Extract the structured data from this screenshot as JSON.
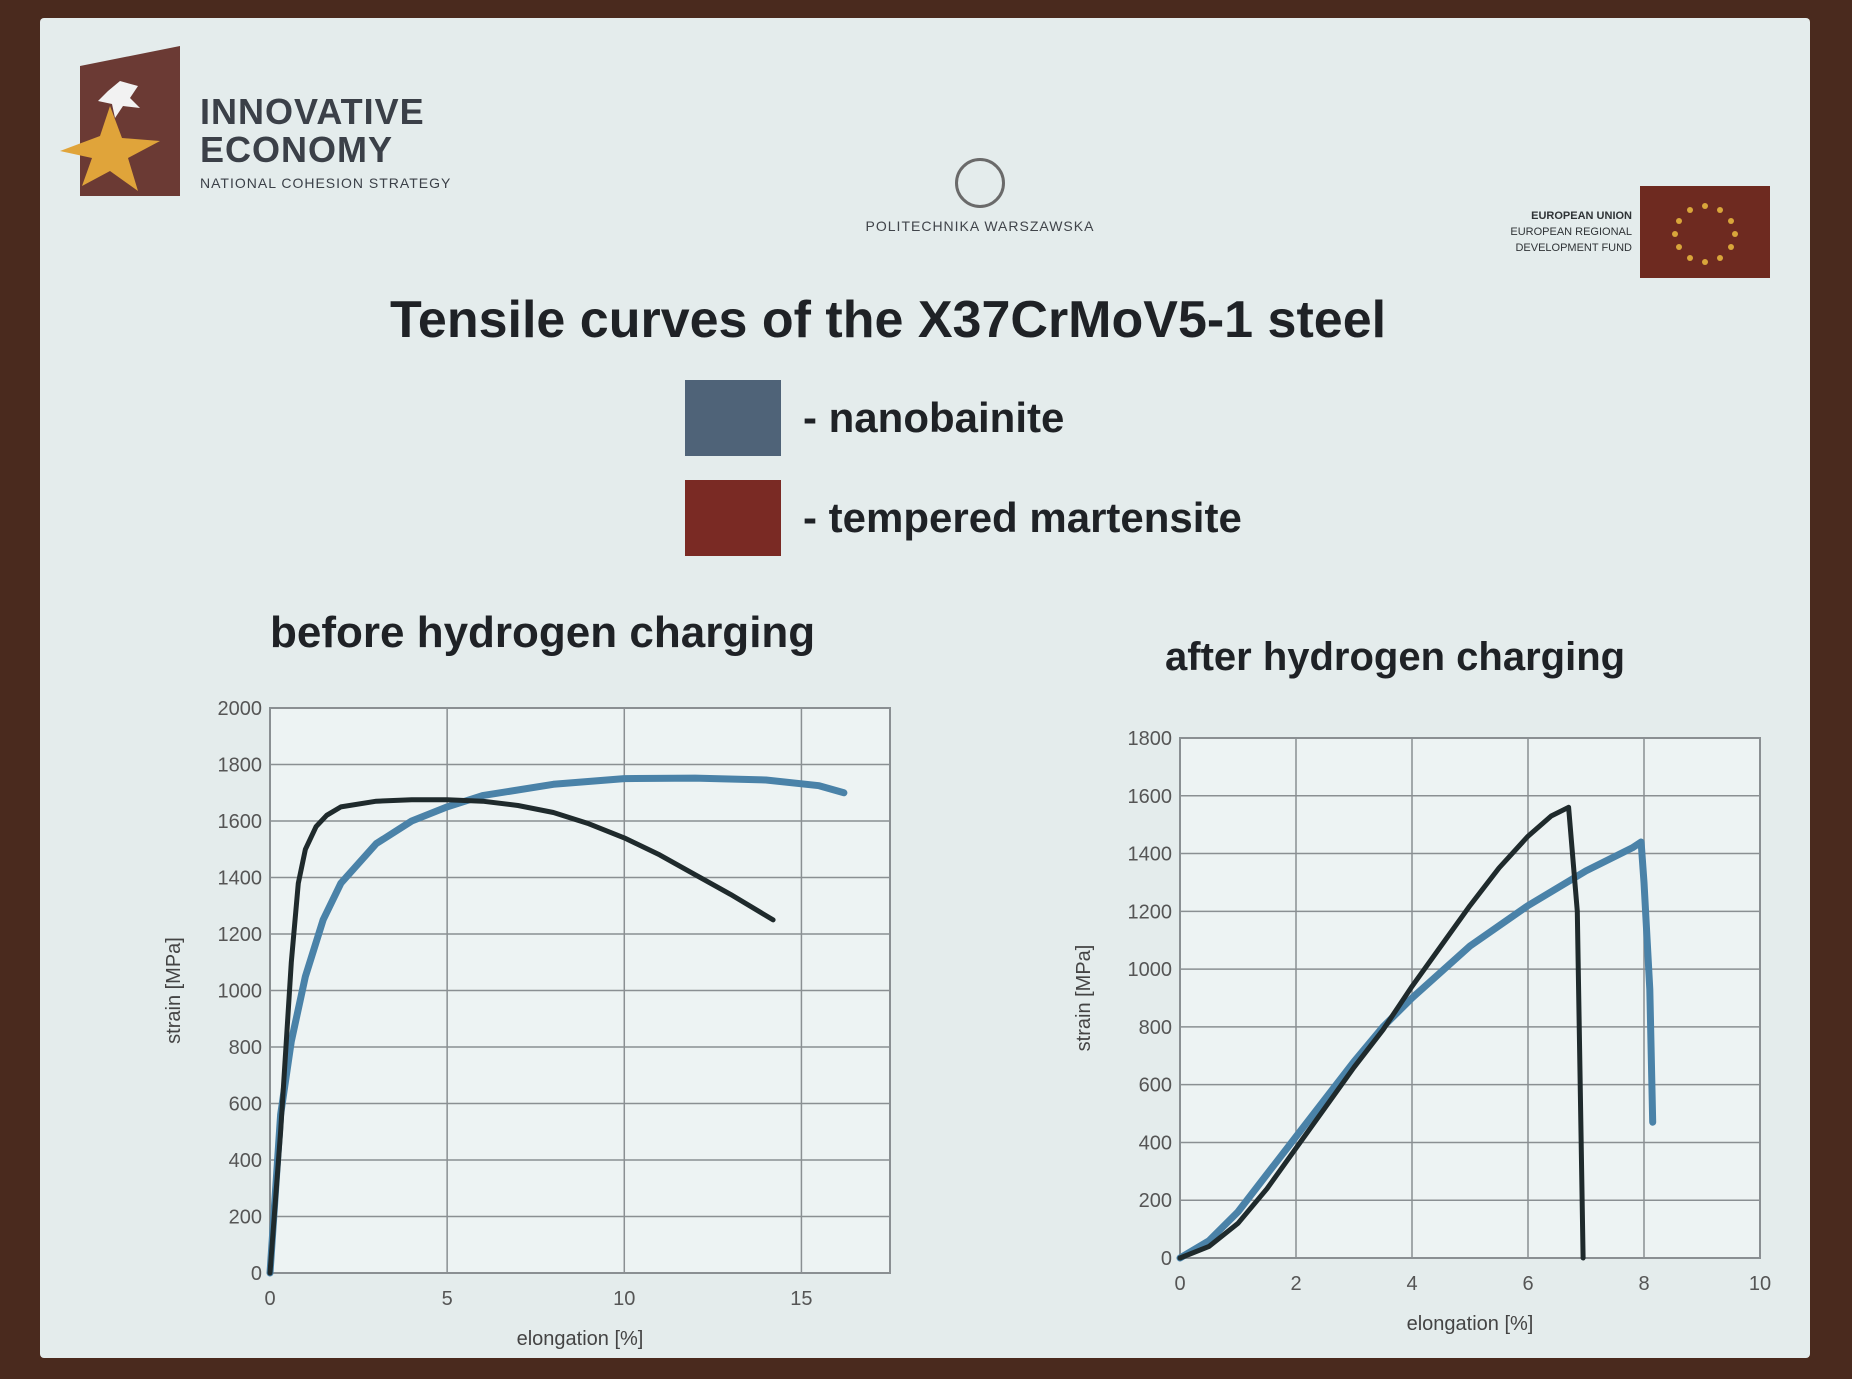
{
  "header": {
    "innovative_line1": "INNOVATIVE",
    "innovative_line2": "ECONOMY",
    "innovative_sub": "NATIONAL COHESION STRATEGY",
    "university": "POLITECHNIKA WARSZAWSKA",
    "eu_line1": "EUROPEAN UNION",
    "eu_line2": "EUROPEAN REGIONAL",
    "eu_line3": "DEVELOPMENT FUND"
  },
  "title": "Tensile curves of the X37CrMoV5-1 steel",
  "legend": [
    {
      "label": "- nanobainite",
      "color": "#4f6378"
    },
    {
      "label": "- tempered martensite",
      "color": "#7a2a24"
    }
  ],
  "colors": {
    "blue_curve": "#4a82a8",
    "dark_curve": "#1f2a2c"
  },
  "chart_data": [
    {
      "type": "line",
      "title": "before hydrogen charging",
      "xlabel": "elongation [%]",
      "ylabel": "strain [MPa]",
      "xlim": [
        0,
        17.5
      ],
      "ylim": [
        0,
        2000
      ],
      "xticks": [
        0,
        5,
        10,
        15
      ],
      "yticks": [
        0,
        200,
        400,
        600,
        800,
        1000,
        1200,
        1400,
        1600,
        1800,
        2000
      ],
      "grid": true,
      "series": [
        {
          "color": "#4a82a8",
          "x": [
            0,
            0.3,
            0.6,
            1,
            1.5,
            2,
            3,
            4,
            5,
            6,
            8,
            10,
            12,
            14,
            15.5,
            16.2
          ],
          "y": [
            0,
            560,
            820,
            1050,
            1250,
            1380,
            1520,
            1600,
            1650,
            1690,
            1730,
            1750,
            1752,
            1745,
            1725,
            1700
          ]
        },
        {
          "color": "#1f2a2c",
          "x": [
            0,
            0.3,
            0.6,
            0.8,
            1,
            1.3,
            1.6,
            2,
            3,
            4,
            5,
            6,
            7,
            8,
            9,
            10,
            11,
            12,
            13,
            14.2
          ],
          "y": [
            0,
            500,
            1100,
            1380,
            1500,
            1580,
            1620,
            1650,
            1670,
            1675,
            1675,
            1670,
            1655,
            1630,
            1590,
            1540,
            1480,
            1410,
            1340,
            1250
          ]
        }
      ]
    },
    {
      "type": "line",
      "title": "after hydrogen charging",
      "xlabel": "elongation [%]",
      "ylabel": "strain [MPa]",
      "xlim": [
        0,
        10
      ],
      "ylim": [
        0,
        1800
      ],
      "xticks": [
        0,
        2,
        4,
        6,
        8,
        10
      ],
      "yticks": [
        0,
        200,
        400,
        600,
        800,
        1000,
        1200,
        1400,
        1600,
        1800
      ],
      "grid": true,
      "series": [
        {
          "color": "#4a82a8",
          "x": [
            0,
            0.5,
            1,
            1.5,
            2,
            2.5,
            3,
            3.5,
            4,
            5,
            6,
            7,
            7.8,
            7.95,
            8.0,
            8.1,
            8.15
          ],
          "y": [
            0,
            60,
            160,
            290,
            420,
            550,
            680,
            800,
            900,
            1080,
            1220,
            1340,
            1420,
            1440,
            1300,
            930,
            470
          ]
        },
        {
          "color": "#1f2a2c",
          "x": [
            0,
            0.5,
            1,
            1.5,
            2,
            2.5,
            3,
            3.5,
            4,
            4.5,
            5,
            5.5,
            6,
            6.4,
            6.7,
            6.85,
            6.95
          ],
          "y": [
            0,
            40,
            120,
            240,
            380,
            520,
            660,
            790,
            940,
            1080,
            1220,
            1350,
            1460,
            1530,
            1560,
            1200,
            0
          ]
        }
      ]
    }
  ]
}
